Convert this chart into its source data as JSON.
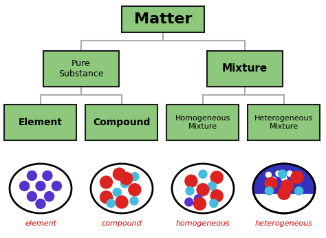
{
  "bg_color": "#ffffff",
  "box_fill": "#8dc87c",
  "box_edge": "#1a1a1a",
  "box_text_color": "#000000",
  "line_color": "#aaaaaa",
  "label_color": "#dd0000",
  "title": "Matter",
  "level1_left": "Pure\nSubstance",
  "level1_right": "Mixture",
  "level2": [
    "Element",
    "Compound",
    "Homogeneous\nMixture",
    "Heterogeneous\nMixture"
  ],
  "circle_labels": [
    "element",
    "compound",
    "homogeneous",
    "heterogeneous"
  ],
  "purple": "#5533cc",
  "red": "#dd2222",
  "cyan": "#44bbdd",
  "blue_fill": "#3333bb",
  "white": "#ffffff",
  "black": "#000000"
}
